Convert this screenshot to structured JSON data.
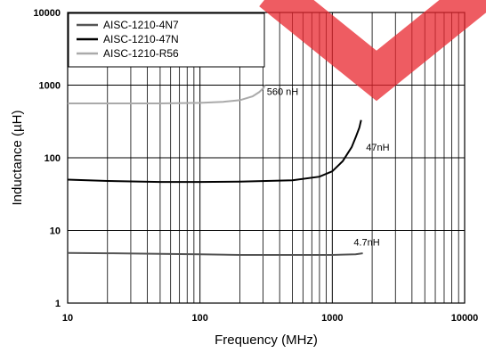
{
  "chart_data": {
    "type": "line",
    "xlabel": "Frequency (MHz)",
    "ylabel": "Inductance (µH)",
    "x_scale": "log",
    "y_scale": "log",
    "xlim": [
      10,
      10000
    ],
    "ylim": [
      1,
      10000
    ],
    "x_ticks": [
      "10",
      "100",
      "1000",
      "10000"
    ],
    "y_ticks": [
      "1",
      "10",
      "100",
      "1000",
      "10000"
    ],
    "grid": true,
    "legend_position": "top-left",
    "series": [
      {
        "name": "AISC-1210-4N7",
        "color": "#555555",
        "x": [
          10,
          20,
          50,
          100,
          200,
          500,
          1000,
          1500,
          1700
        ],
        "y": [
          4.9,
          4.85,
          4.75,
          4.7,
          4.6,
          4.6,
          4.6,
          4.7,
          4.85
        ]
      },
      {
        "name": "AISC-1210-47N",
        "color": "#000000",
        "x": [
          10,
          20,
          50,
          100,
          200,
          500,
          800,
          1000,
          1200,
          1400,
          1500,
          1600,
          1650
        ],
        "y": [
          50,
          48,
          46.5,
          46.5,
          47,
          49,
          55,
          65,
          90,
          140,
          190,
          260,
          330
        ]
      },
      {
        "name": "AISC-1210-R56",
        "color": "#aaaaaa",
        "x": [
          10,
          30,
          50,
          100,
          150,
          200,
          250,
          280,
          300,
          310
        ],
        "y": [
          560,
          560,
          560,
          570,
          590,
          620,
          700,
          800,
          900,
          1000
        ]
      }
    ],
    "annotations": [
      {
        "text": "560 nH",
        "x": 320,
        "y": 730
      },
      {
        "text": "47nH",
        "x": 1800,
        "y": 125
      },
      {
        "text": "4.7nH",
        "x": 1450,
        "y": 6.2
      }
    ],
    "watermark_color": "#e8262e"
  }
}
